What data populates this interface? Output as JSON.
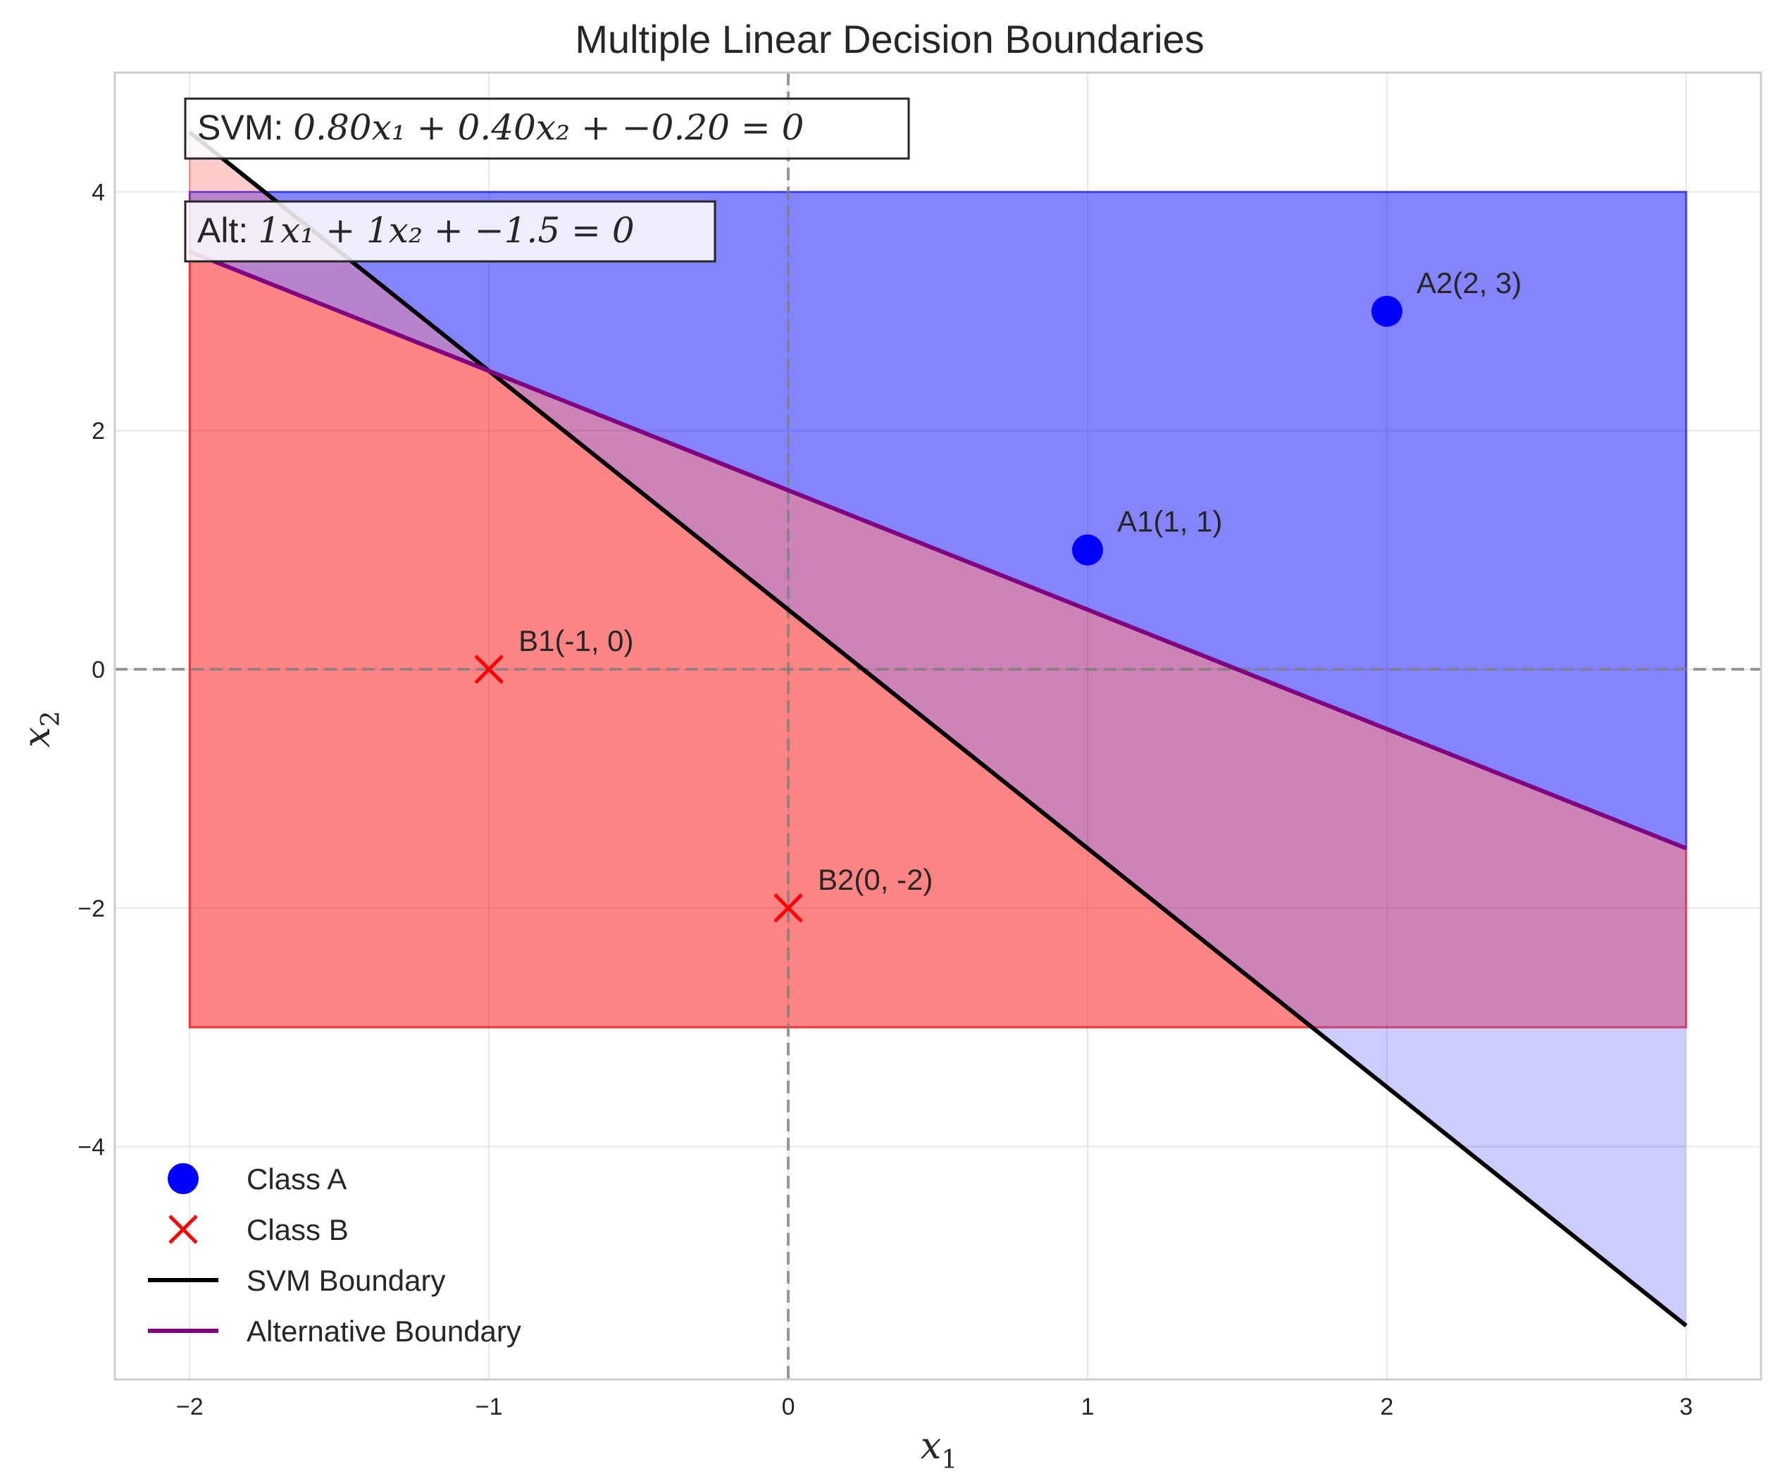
{
  "chart_data": {
    "type": "scatter",
    "title": "Multiple Linear Decision Boundaries",
    "xlabel": "x",
    "xlabel_sub": "1",
    "ylabel": "x",
    "ylabel_sub": "2",
    "xlim": [
      -2.25,
      3.25
    ],
    "ylim": [
      -5.95,
      5.0
    ],
    "xticks": [
      -2,
      -1,
      0,
      1,
      2,
      3
    ],
    "yticks": [
      -4,
      -2,
      0,
      2,
      4
    ],
    "xtick_labels": [
      "−2",
      "−1",
      "0",
      "1",
      "2",
      "3"
    ],
    "ytick_labels": [
      "−4",
      "−2",
      "0",
      "2",
      "4"
    ],
    "grid": true,
    "points": [
      {
        "label": "A1(1, 1)",
        "x": 1,
        "y": 1,
        "class": "A"
      },
      {
        "label": "A2(2, 3)",
        "x": 2,
        "y": 3,
        "class": "A"
      },
      {
        "label": "B1(-1, 0)",
        "x": -1,
        "y": 0,
        "class": "B"
      },
      {
        "label": "B2(0, -2)",
        "x": 0,
        "y": -2,
        "class": "B"
      }
    ],
    "boundaries": [
      {
        "name": "SVM Boundary",
        "w1": 0.8,
        "w2": 0.4,
        "b": -0.2,
        "x_range": [
          -2,
          3
        ],
        "color": "#000000"
      },
      {
        "name": "Alternative Boundary",
        "w1": 1,
        "w2": 1,
        "b": -1.5,
        "x_range": [
          -2,
          3
        ],
        "color": "#800080"
      }
    ],
    "regions": [
      {
        "name": "Class A region",
        "color": "#0000ff",
        "opacity": 0.35
      },
      {
        "name": "Class B region",
        "color": "#ff0000",
        "opacity": 0.35
      },
      {
        "name": "Class A region (above boundary)",
        "color": "#0000ff",
        "opacity": 0.2
      },
      {
        "name": "Class B region (below boundary)",
        "color": "#ff0000",
        "opacity": 0.2
      }
    ],
    "equations": {
      "svm_prefix": "SVM:",
      "svm_body": "0.80x₁ + 0.40x₂ + −0.20 = 0",
      "alt_prefix": "Alt:",
      "alt_body": "1x₁ + 1x₂ + −1.5 = 0"
    },
    "legend": {
      "placement": "bottom-left",
      "entries": [
        {
          "label": "Class A",
          "marker": "circle",
          "color": "#0000ff"
        },
        {
          "label": "Class B",
          "marker": "x",
          "color": "#ff0000"
        },
        {
          "label": "SVM Boundary",
          "marker": "line",
          "color": "#000000"
        },
        {
          "label": "Alternative Boundary",
          "marker": "line",
          "color": "#800080"
        }
      ]
    },
    "colors": {
      "class_a": "#0000ff",
      "class_b": "#ff0000",
      "svm": "#000000",
      "alt": "#800080",
      "axis_line": "#808080"
    }
  }
}
